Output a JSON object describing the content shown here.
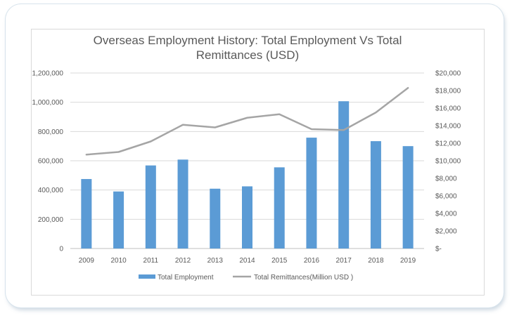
{
  "chart_data": {
    "type": "bar",
    "title_lines": [
      "Overseas Employment History: Total Employment Vs Total",
      "Remittances (USD)"
    ],
    "categories": [
      "2009",
      "2010",
      "2011",
      "2012",
      "2013",
      "2014",
      "2015",
      "2016",
      "2017",
      "2018",
      "2019"
    ],
    "series": [
      {
        "name": "Total Employment",
        "type": "bar",
        "axis": "left",
        "color": "#5b9bd5",
        "values": [
          475000,
          390000,
          568000,
          608000,
          409000,
          425000,
          555000,
          758000,
          1007000,
          734000,
          700000
        ]
      },
      {
        "name": "Total Remittances(Million USD )",
        "type": "line",
        "axis": "right",
        "color": "#a5a5a5",
        "values": [
          10700,
          11000,
          12200,
          14100,
          13800,
          14900,
          15300,
          13600,
          13500,
          15500,
          18300
        ]
      }
    ],
    "left_axis": {
      "ylim": [
        0,
        1200000
      ],
      "ticks": [
        0,
        200000,
        400000,
        600000,
        800000,
        1000000,
        1200000
      ],
      "tick_labels": [
        "0",
        "200,000",
        "400,000",
        "600,000",
        "800,000",
        "1,000,000",
        "1,200,000"
      ]
    },
    "right_axis": {
      "ylim": [
        0,
        20000
      ],
      "ticks": [
        0,
        2000,
        4000,
        6000,
        8000,
        10000,
        12000,
        14000,
        16000,
        18000,
        20000
      ],
      "tick_labels": [
        "$-",
        "$2,000",
        "$4,000",
        "$6,000",
        "$8,000",
        "$10,000",
        "$12,000",
        "$14,000",
        "$16,000",
        "$18,000",
        "$20,000"
      ]
    },
    "grid": true,
    "legend_position": "bottom"
  }
}
